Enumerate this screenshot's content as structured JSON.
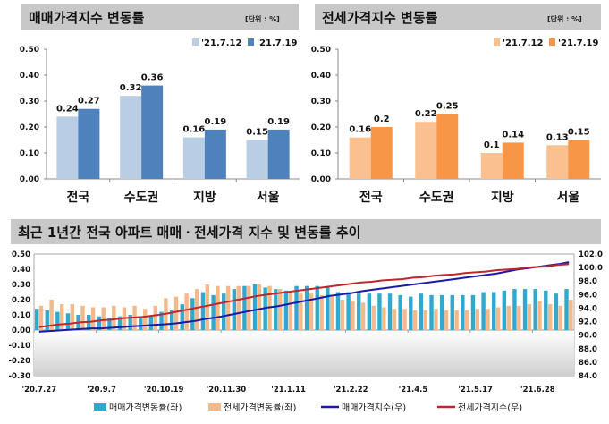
{
  "chart_data": [
    {
      "type": "bar",
      "title": "매매가격지수 변동률",
      "unit": "[단위 : %]",
      "categories": [
        "전국",
        "수도권",
        "지방",
        "서울"
      ],
      "series": [
        {
          "name": "'21.7.12",
          "values": [
            0.24,
            0.32,
            0.16,
            0.15
          ],
          "color": "#b9cde5"
        },
        {
          "name": "'21.7.19",
          "values": [
            0.27,
            0.36,
            0.19,
            0.19
          ],
          "color": "#4f81bd"
        }
      ],
      "ylim": [
        0,
        0.5
      ],
      "yticks": [
        "0.00",
        "0.10",
        "0.20",
        "0.30",
        "0.40",
        "0.50"
      ]
    },
    {
      "type": "bar",
      "title": "전세가격지수 변동률",
      "unit": "[단위 : %]",
      "categories": [
        "전국",
        "수도권",
        "지방",
        "서울"
      ],
      "series": [
        {
          "name": "'21.7.12",
          "values": [
            0.16,
            0.22,
            0.1,
            0.13
          ],
          "color": "#fac090"
        },
        {
          "name": "'21.7.19",
          "values": [
            0.2,
            0.25,
            0.14,
            0.15
          ],
          "color": "#f79646"
        }
      ],
      "ylim": [
        0,
        0.5
      ],
      "yticks": [
        "0.00",
        "0.10",
        "0.20",
        "0.30",
        "0.40",
        "0.50"
      ]
    },
    {
      "type": "bar+line",
      "title": "최근 1년간 전국 아파트 매매ㆍ전세가격 지수 및 변동률 추이",
      "xticks": [
        "'20.7.27",
        "'20.9.7",
        "'20.10.19",
        "'20.11.30",
        "'21.1.11",
        "'21.2.22",
        "'21.4.5",
        "'21.5.17",
        "'21.6.28"
      ],
      "ylim_left": [
        -0.3,
        0.5
      ],
      "yticks_left": [
        "-0.30",
        "-0.20",
        "-0.10",
        "0.00",
        "0.10",
        "0.20",
        "0.30",
        "0.40",
        "0.50"
      ],
      "ylim_right": [
        84,
        102
      ],
      "yticks_right": [
        "84.0",
        "86.0",
        "88.0",
        "90.0",
        "92.0",
        "94.0",
        "96.0",
        "98.0",
        "100.0",
        "102.0"
      ],
      "series": [
        {
          "name": "매매가격변동률(좌)",
          "kind": "bar",
          "color": "#31a9cf",
          "values": [
            0.14,
            0.13,
            0.12,
            0.11,
            0.1,
            0.1,
            0.09,
            0.08,
            0.09,
            0.1,
            0.08,
            0.09,
            0.12,
            0.13,
            0.17,
            0.21,
            0.25,
            0.23,
            0.24,
            0.27,
            0.29,
            0.3,
            0.28,
            0.27,
            0.26,
            0.29,
            0.29,
            0.29,
            0.28,
            0.25,
            0.25,
            0.24,
            0.24,
            0.24,
            0.24,
            0.23,
            0.22,
            0.24,
            0.23,
            0.23,
            0.23,
            0.23,
            0.23,
            0.25,
            0.25,
            0.26,
            0.27,
            0.27,
            0.27,
            0.26,
            0.24,
            0.27
          ]
        },
        {
          "name": "전세가격변동률(좌)",
          "kind": "bar",
          "color": "#f4b98a",
          "values": [
            0.16,
            0.2,
            0.17,
            0.17,
            0.16,
            0.15,
            0.15,
            0.16,
            0.15,
            0.16,
            0.14,
            0.16,
            0.21,
            0.22,
            0.24,
            0.27,
            0.3,
            0.29,
            0.29,
            0.29,
            0.29,
            0.3,
            0.29,
            0.27,
            0.25,
            0.24,
            0.24,
            0.23,
            0.22,
            0.2,
            0.19,
            0.18,
            0.16,
            0.15,
            0.14,
            0.14,
            0.13,
            0.13,
            0.14,
            0.13,
            0.13,
            0.13,
            0.14,
            0.14,
            0.15,
            0.16,
            0.16,
            0.17,
            0.19,
            0.17,
            0.16,
            0.2
          ]
        },
        {
          "name": "매매가격지수(우)",
          "kind": "line",
          "color": "#1a1aa6",
          "values": [
            90.5,
            90.6,
            90.7,
            90.8,
            90.9,
            91.0,
            91.0,
            91.1,
            91.2,
            91.3,
            91.4,
            91.5,
            91.6,
            91.7,
            91.9,
            92.1,
            92.4,
            92.6,
            92.9,
            93.2,
            93.5,
            93.8,
            94.1,
            94.3,
            94.6,
            94.9,
            95.2,
            95.5,
            95.8,
            96.0,
            96.2,
            96.5,
            96.7,
            96.9,
            97.1,
            97.3,
            97.5,
            97.7,
            97.9,
            98.1,
            98.3,
            98.5,
            98.7,
            98.9,
            99.1,
            99.4,
            99.7,
            99.9,
            100.1,
            100.3,
            100.5,
            100.8
          ]
        },
        {
          "name": "전세가격지수(우)",
          "kind": "line",
          "color": "#c0272d",
          "values": [
            91.2,
            91.4,
            91.6,
            91.7,
            91.9,
            92.0,
            92.2,
            92.3,
            92.5,
            92.6,
            92.7,
            92.9,
            93.1,
            93.4,
            93.7,
            94.0,
            94.3,
            94.6,
            94.9,
            95.2,
            95.5,
            95.8,
            96.0,
            96.2,
            96.4,
            96.6,
            96.8,
            97.0,
            97.2,
            97.4,
            97.6,
            97.8,
            97.9,
            98.1,
            98.2,
            98.3,
            98.5,
            98.6,
            98.8,
            98.9,
            99.0,
            99.2,
            99.3,
            99.4,
            99.6,
            99.7,
            99.8,
            100.0,
            100.1,
            100.2,
            100.4,
            100.5
          ]
        }
      ]
    }
  ]
}
